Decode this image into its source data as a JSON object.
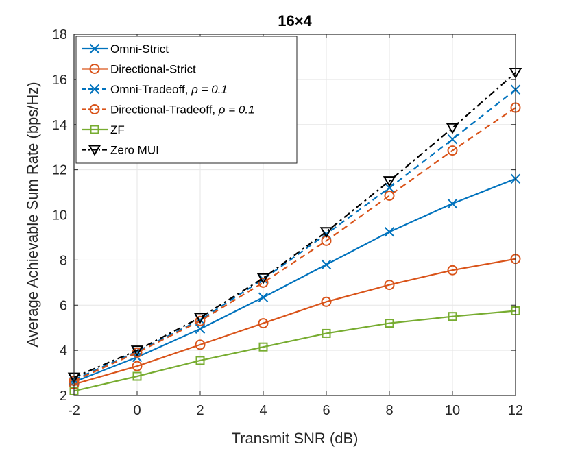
{
  "chart_data": {
    "type": "line",
    "title": "16×4",
    "xlabel": "Transmit SNR (dB)",
    "ylabel": "Average Achievable Sum Rate (bps/Hz)",
    "xlim": [
      -2,
      12
    ],
    "ylim": [
      2,
      18
    ],
    "grid": true,
    "legend_position": "top-left",
    "x": [
      -2,
      0,
      2,
      4,
      6,
      8,
      10,
      12
    ],
    "xticks": [
      "-2",
      "0",
      "2",
      "4",
      "6",
      "8",
      "10",
      "12"
    ],
    "yticks": [
      "2",
      "4",
      "6",
      "8",
      "10",
      "12",
      "14",
      "16",
      "18"
    ],
    "series": [
      {
        "name": "Omni-Strict",
        "legend_main": "Omni-Strict",
        "legend_rho": "",
        "color": "#0072BD",
        "dash": "solid",
        "marker": "x",
        "values": [
          2.6,
          3.7,
          4.95,
          6.35,
          7.8,
          9.25,
          10.5,
          11.6
        ]
      },
      {
        "name": "Directional-Strict",
        "legend_main": "Directional-Strict",
        "legend_rho": "",
        "color": "#D95319",
        "dash": "solid",
        "marker": "circle",
        "values": [
          2.5,
          3.3,
          4.25,
          5.2,
          6.15,
          6.9,
          7.55,
          8.05
        ]
      },
      {
        "name": "Omni-Tradeoff, ρ = 0.1",
        "legend_main": "Omni-Tradeoff, ",
        "legend_rho": "ρ = 0.1",
        "color": "#0072BD",
        "dash": "dashed",
        "marker": "x",
        "values": [
          2.7,
          3.95,
          5.35,
          7.15,
          9.15,
          11.2,
          13.35,
          15.55
        ]
      },
      {
        "name": "Directional-Tradeoff, ρ = 0.1",
        "legend_main": "Directional-Tradeoff, ",
        "legend_rho": "ρ = 0.1",
        "color": "#D95319",
        "dash": "dashed",
        "marker": "circle",
        "values": [
          2.65,
          3.9,
          5.3,
          7.0,
          8.85,
          10.85,
          12.85,
          14.75
        ]
      },
      {
        "name": "ZF",
        "legend_main": "ZF",
        "legend_rho": "",
        "color": "#77AC30",
        "dash": "solid",
        "marker": "square",
        "values": [
          2.2,
          2.85,
          3.55,
          4.15,
          4.75,
          5.2,
          5.5,
          5.75
        ]
      },
      {
        "name": "Zero MUI",
        "legend_main": "Zero MUI",
        "legend_rho": "",
        "color": "#000000",
        "dash": "dashdot",
        "marker": "triangle-down",
        "values": [
          2.8,
          4.0,
          5.45,
          7.2,
          9.25,
          11.5,
          13.85,
          16.3
        ]
      }
    ]
  }
}
